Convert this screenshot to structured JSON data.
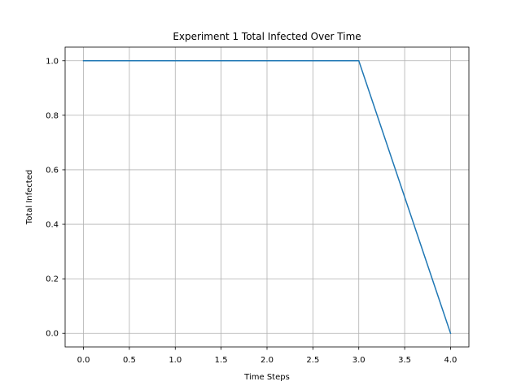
{
  "chart_data": {
    "type": "line",
    "title": "Experiment 1 Total Infected Over Time",
    "xlabel": "Time Steps",
    "ylabel": "Total Infected",
    "xlim": [
      -0.2,
      4.2
    ],
    "ylim": [
      -0.05,
      1.05
    ],
    "xticks": [
      0.0,
      0.5,
      1.0,
      1.5,
      2.0,
      2.5,
      3.0,
      3.5,
      4.0
    ],
    "yticks": [
      0.0,
      0.2,
      0.4,
      0.6,
      0.8,
      1.0
    ],
    "xtick_labels": [
      "0.0",
      "0.5",
      "1.0",
      "1.5",
      "2.0",
      "2.5",
      "3.0",
      "3.5",
      "4.0"
    ],
    "ytick_labels": [
      "0.0",
      "0.2",
      "0.4",
      "0.6",
      "0.8",
      "1.0"
    ],
    "grid": true,
    "legend": "none",
    "series": [
      {
        "x": [
          0,
          1,
          2,
          3,
          4
        ],
        "y": [
          1,
          1,
          1,
          1,
          0
        ],
        "color": "#1f77b4"
      }
    ],
    "grid_color": "#b0b0b0"
  }
}
